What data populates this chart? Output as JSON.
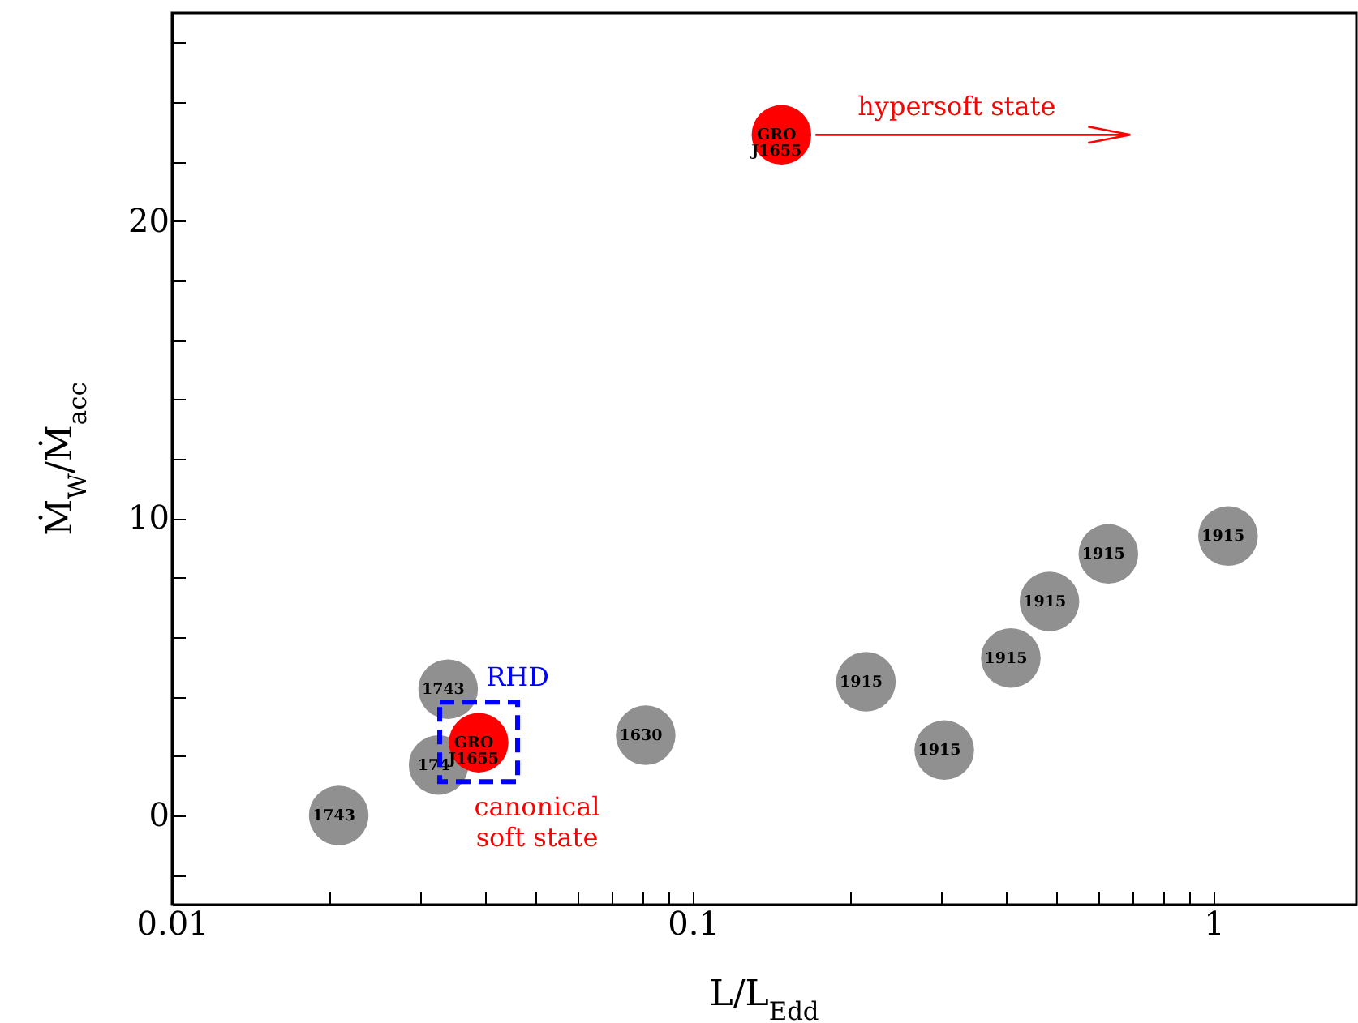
{
  "chart_data": {
    "type": "scatter",
    "xlabel": "L/L$_{Edd}$",
    "ylabel": "Ṁ$_{W}$/Ṁ$_{acc}$",
    "log": "x",
    "marker": "circle",
    "xlim": [
      0.01,
      1.88
    ],
    "ylim": [
      -3,
      27
    ],
    "xticks": [
      0.01,
      {
        "value": 0.02,
        "label": null
      },
      {
        "value": 0.03,
        "label": null
      },
      {
        "value": 0.04,
        "label": null
      },
      {
        "value": 0.05,
        "label": null
      },
      {
        "value": 0.06,
        "label": null
      },
      {
        "value": 0.07,
        "label": null
      },
      {
        "value": 0.08,
        "label": null
      },
      {
        "value": 0.09,
        "label": null
      },
      0.1,
      {
        "value": 0.2,
        "label": null
      },
      {
        "value": 0.3,
        "label": null
      },
      {
        "value": 0.4,
        "label": null
      },
      {
        "value": 0.5,
        "label": null
      },
      {
        "value": 0.6,
        "label": null
      },
      {
        "value": 0.7,
        "label": null
      },
      {
        "value": 0.8,
        "label": null
      },
      {
        "value": 0.9,
        "label": null
      },
      1
    ],
    "yticks": [
      {
        "value": -2,
        "label": null
      },
      0,
      {
        "value": 2,
        "label": null
      },
      {
        "value": 4,
        "label": null
      },
      {
        "value": 6,
        "label": null
      },
      {
        "value": 8,
        "label": null
      },
      10,
      {
        "value": 12,
        "label": null
      },
      {
        "value": 14,
        "label": null
      },
      {
        "value": 16,
        "label": null
      },
      {
        "value": 18,
        "label": null
      },
      20,
      {
        "value": 22,
        "label": null
      },
      {
        "value": 24,
        "label": null
      },
      {
        "value": 26,
        "label": null
      }
    ],
    "series": [
      {
        "color": "#909090",
        "x": [
          0.0209,
          0.0339,
          0.0325,
          0.0812,
          0.215,
          0.304,
          0.408,
          0.484,
          0.628,
          1.066
        ],
        "values": [
          0,
          4.25,
          1.7,
          2.7,
          4.5,
          2.2,
          5.3,
          7.2,
          8.8,
          9.4
        ]
      },
      {
        "color": "#ff0000",
        "x": [
          0.0388,
          0.148
        ],
        "values": [
          2.45,
          22.9
        ]
      }
    ],
    "annotations": [
      {
        "text": "1743",
        "x": 0.0209,
        "y": 0
      },
      {
        "text": "1743",
        "x": 0.0339,
        "y": 4.25
      },
      {
        "text": "174",
        "x": 0.0325,
        "y": 1.7
      },
      {
        "text": "1630",
        "x": 0.0812,
        "y": 2.7
      },
      {
        "text": "1915",
        "x": 0.215,
        "y": 4.5
      },
      {
        "text": "1915",
        "x": 0.304,
        "y": 2.2
      },
      {
        "text": "1915",
        "x": 0.408,
        "y": 5.3
      },
      {
        "text": "1915",
        "x": 0.484,
        "y": 7.2
      },
      {
        "text": "1915",
        "x": 0.628,
        "y": 8.8
      },
      {
        "text": "1915",
        "x": 1.066,
        "y": 9.4
      },
      {
        "text": "GRO\nJ1655",
        "x": 0.0388,
        "y": 2.45
      },
      {
        "text": "GRO\nJ1655",
        "x": 0.148,
        "y": 22.9
      },
      "hypersoft state",
      "RHD",
      "canonical\nsoft state"
    ]
  }
}
